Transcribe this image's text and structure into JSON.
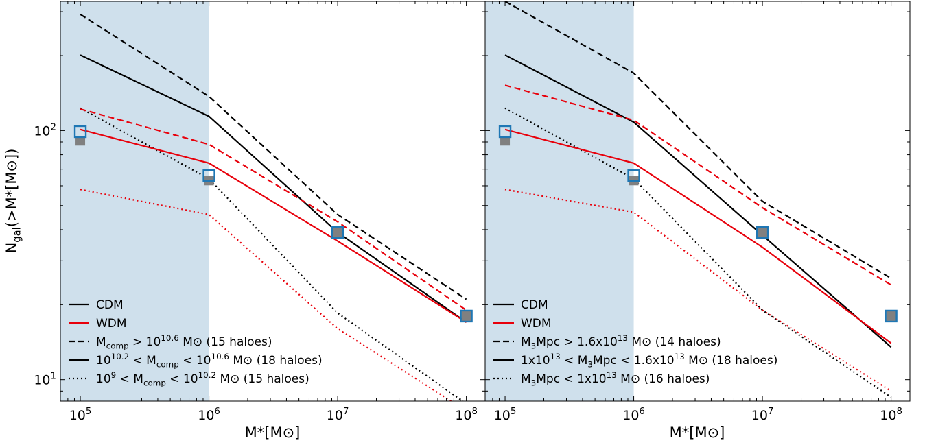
{
  "figure": {
    "ylabel": "N_gal(>M*[M⊙])",
    "xlabel": "M*[M⊙]",
    "shade_xrange": [
      100000.0,
      1000000.0
    ],
    "shade_color": "#cfe0ec",
    "colors": {
      "cdm": "#000000",
      "wdm": "#e8000b",
      "marker_open": "#1f77b4",
      "marker_filled": "#808080"
    }
  },
  "chart_data": [
    {
      "type": "line",
      "xscale": "log",
      "yscale": "log",
      "xlim": [
        70000.0,
        140000000.0
      ],
      "ylim": [
        8.2,
        330
      ],
      "xticks": [
        100000.0,
        1000000.0,
        10000000.0,
        100000000.0
      ],
      "xtick_labels": [
        "10^5",
        "10^6",
        "10^7",
        "10^8"
      ],
      "yticks": [
        10,
        100
      ],
      "ytick_labels": [
        "10^1",
        "10^2"
      ],
      "grid": false,
      "legend_position": "lower-left",
      "x": [
        100000.0,
        1000000.0,
        10000000.0,
        100000000.0
      ],
      "series": [
        {
          "model": "CDM",
          "group": "high",
          "style": "dashed",
          "values": [
            293,
            137,
            46,
            21
          ]
        },
        {
          "model": "CDM",
          "group": "mid",
          "style": "solid",
          "values": [
            201,
            114,
            39,
            17
          ]
        },
        {
          "model": "CDM",
          "group": "low",
          "style": "dotted",
          "values": [
            123,
            64,
            18.5,
            8
          ]
        },
        {
          "model": "WDM",
          "group": "high",
          "style": "dashed",
          "values": [
            122,
            88,
            43,
            19
          ]
        },
        {
          "model": "WDM",
          "group": "mid",
          "style": "solid",
          "values": [
            101,
            74,
            36,
            17
          ]
        },
        {
          "model": "WDM",
          "group": "low",
          "style": "dotted",
          "values": [
            58,
            46,
            16,
            7.5
          ]
        }
      ],
      "markers_open": {
        "x": [
          100000.0,
          1000000.0,
          10000000.0,
          100000000.0
        ],
        "y": [
          99,
          66,
          39,
          18
        ]
      },
      "markers_filled": {
        "x": [
          100000.0,
          1000000.0,
          10000000.0,
          100000000.0
        ],
        "y": [
          91,
          63,
          39,
          18
        ]
      },
      "legend": [
        {
          "style": "solid",
          "color": "cdm",
          "label": "CDM"
        },
        {
          "style": "solid",
          "color": "wdm",
          "label": "WDM"
        },
        {
          "style": "dashed",
          "color": "cdm",
          "label": "M_comp > 10^10.6 M⊙ (15 haloes)"
        },
        {
          "style": "solid",
          "color": "cdm",
          "label": "10^10.2 < M_comp < 10^10.6 M⊙ (18 haloes)"
        },
        {
          "style": "dotted",
          "color": "cdm",
          "label": "10^9 < M_comp < 10^10.2 M⊙ (15 haloes)"
        }
      ]
    },
    {
      "type": "line",
      "xscale": "log",
      "yscale": "log",
      "xlim": [
        70000.0,
        140000000.0
      ],
      "ylim": [
        8.2,
        330
      ],
      "xticks": [
        100000.0,
        1000000.0,
        10000000.0,
        100000000.0
      ],
      "xtick_labels": [
        "10^5",
        "10^6",
        "10^7",
        "10^8"
      ],
      "yticks": [
        10,
        100
      ],
      "ytick_labels": [
        "",
        ""
      ],
      "grid": false,
      "legend_position": "lower-left",
      "x": [
        100000.0,
        1000000.0,
        10000000.0,
        100000000.0
      ],
      "series": [
        {
          "model": "CDM",
          "group": "high",
          "style": "dashed",
          "values": [
            330,
            170,
            52,
            25.5
          ]
        },
        {
          "model": "CDM",
          "group": "mid",
          "style": "solid",
          "values": [
            201,
            108,
            38,
            13.5
          ]
        },
        {
          "model": "CDM",
          "group": "low",
          "style": "dotted",
          "values": [
            123,
            64,
            19,
            8.5
          ]
        },
        {
          "model": "WDM",
          "group": "high",
          "style": "dashed",
          "values": [
            152,
            110,
            49,
            24
          ]
        },
        {
          "model": "WDM",
          "group": "mid",
          "style": "solid",
          "values": [
            101,
            74,
            34,
            14
          ]
        },
        {
          "model": "WDM",
          "group": "low",
          "style": "dotted",
          "values": [
            58,
            47,
            19,
            9
          ]
        }
      ],
      "markers_open": {
        "x": [
          100000.0,
          1000000.0,
          10000000.0,
          100000000.0
        ],
        "y": [
          99,
          66,
          39,
          18
        ]
      },
      "markers_filled": {
        "x": [
          100000.0,
          1000000.0,
          10000000.0,
          100000000.0
        ],
        "y": [
          91,
          63,
          39,
          18
        ]
      },
      "legend": [
        {
          "style": "solid",
          "color": "cdm",
          "label": "CDM"
        },
        {
          "style": "solid",
          "color": "wdm",
          "label": "WDM"
        },
        {
          "style": "dashed",
          "color": "cdm",
          "label": "M_3Mpc > 1.6x10^13 M⊙ (14 haloes)"
        },
        {
          "style": "solid",
          "color": "cdm",
          "label": "1x10^13 < M_3Mpc < 1.6x10^13 M⊙ (18 haloes)"
        },
        {
          "style": "dotted",
          "color": "cdm",
          "label": "M_3Mpc < 1x10^13 M⊙ (16 haloes)"
        }
      ]
    }
  ]
}
